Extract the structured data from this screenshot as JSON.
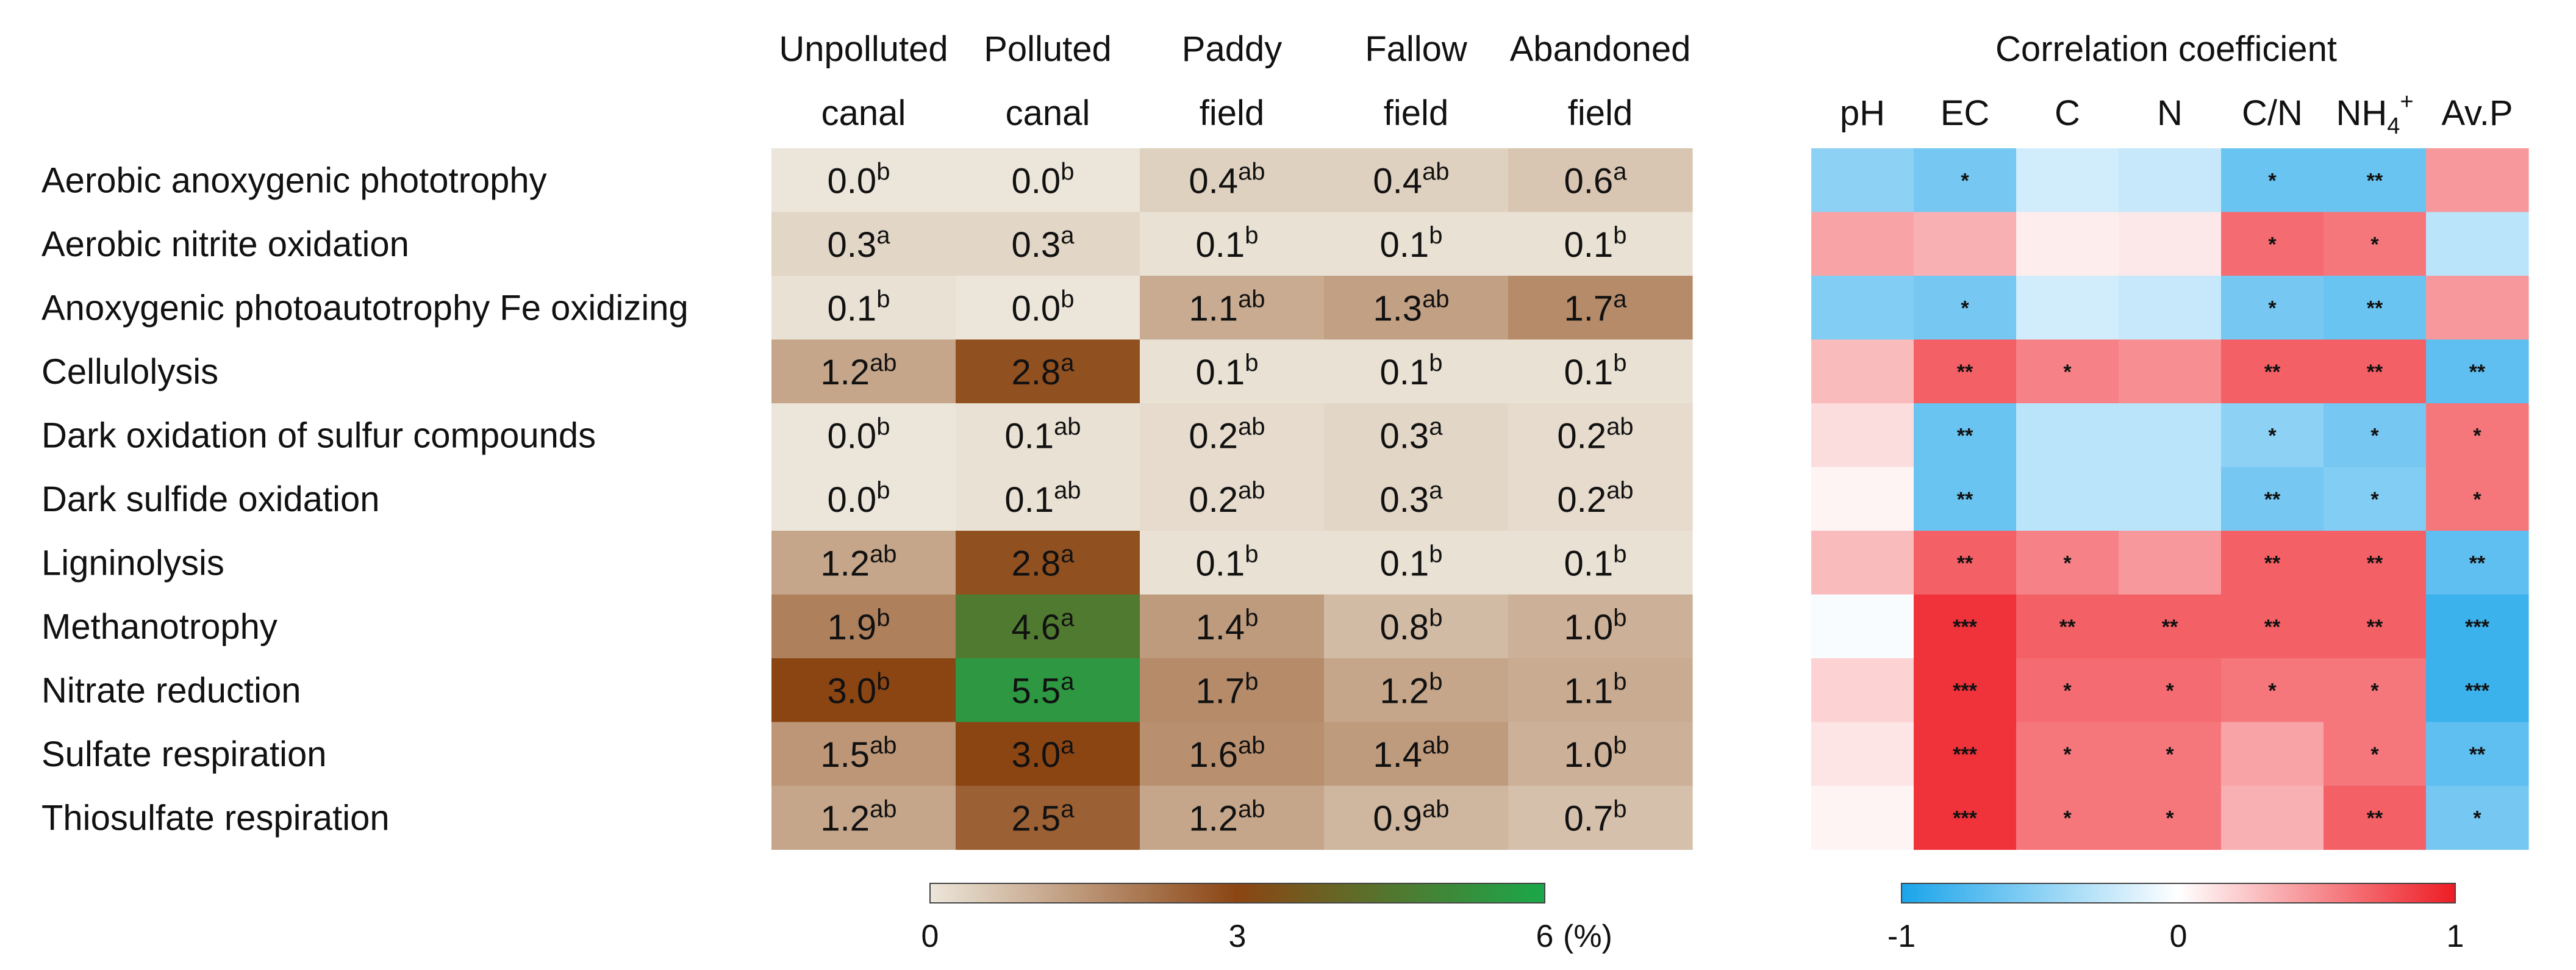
{
  "chart_data": [
    {
      "type": "heatmap",
      "title": "",
      "unit": "(%)",
      "columns": [
        {
          "line1": "Unpolluted",
          "line2": "canal"
        },
        {
          "line1": "Polluted",
          "line2": "canal"
        },
        {
          "line1": "Paddy",
          "line2": "field"
        },
        {
          "line1": "Fallow",
          "line2": "field"
        },
        {
          "line1": "Abandoned",
          "line2": "field"
        }
      ],
      "rows": [
        "Aerobic anoxygenic phototrophy",
        "Aerobic nitrite oxidation",
        "Anoxygenic photoautotrophy Fe oxidizing",
        "Cellulolysis",
        "Dark oxidation of sulfur compounds",
        "Dark sulfide oxidation",
        "Ligninolysis",
        "Methanotrophy",
        "Nitrate reduction",
        "Sulfate respiration",
        "Thiosulfate respiration"
      ],
      "values": [
        [
          0.0,
          0.0,
          0.4,
          0.4,
          0.6
        ],
        [
          0.3,
          0.3,
          0.1,
          0.1,
          0.1
        ],
        [
          0.1,
          0.0,
          1.1,
          1.3,
          1.7
        ],
        [
          1.2,
          2.8,
          0.1,
          0.1,
          0.1
        ],
        [
          0.0,
          0.1,
          0.2,
          0.3,
          0.2
        ],
        [
          0.0,
          0.1,
          0.2,
          0.3,
          0.2
        ],
        [
          1.2,
          2.8,
          0.1,
          0.1,
          0.1
        ],
        [
          1.9,
          4.6,
          1.4,
          0.8,
          1.0
        ],
        [
          3.0,
          5.5,
          1.7,
          1.2,
          1.1
        ],
        [
          1.5,
          3.0,
          1.6,
          1.4,
          1.0
        ],
        [
          1.2,
          2.5,
          1.2,
          0.9,
          0.7
        ]
      ],
      "labels": [
        [
          "0.0",
          "0.0",
          "0.4",
          "0.4",
          "0.6"
        ],
        [
          "0.3",
          "0.3",
          "0.1",
          "0.1",
          "0.1"
        ],
        [
          "0.1",
          "0.0",
          "1.1",
          "1.3",
          "1.7"
        ],
        [
          "1.2",
          "2.8",
          "0.1",
          "0.1",
          "0.1"
        ],
        [
          "0.0",
          "0.1",
          "0.2",
          "0.3",
          "0.2"
        ],
        [
          "0.0",
          "0.1",
          "0.2",
          "0.3",
          "0.2"
        ],
        [
          "1.2",
          "2.8",
          "0.1",
          "0.1",
          "0.1"
        ],
        [
          "1.9",
          "4.6",
          "1.4",
          "0.8",
          "1.0"
        ],
        [
          "3.0",
          "5.5",
          "1.7",
          "1.2",
          "1.1"
        ],
        [
          "1.5",
          "3.0",
          "1.6",
          "1.4",
          "1.0"
        ],
        [
          "1.2",
          "2.5",
          "1.2",
          "0.9",
          "0.7"
        ]
      ],
      "letters": [
        [
          "b",
          "b",
          "ab",
          "ab",
          "a"
        ],
        [
          "a",
          "a",
          "b",
          "b",
          "b"
        ],
        [
          "b",
          "b",
          "ab",
          "ab",
          "a"
        ],
        [
          "ab",
          "a",
          "b",
          "b",
          "b"
        ],
        [
          "b",
          "ab",
          "ab",
          "a",
          "ab"
        ],
        [
          "b",
          "ab",
          "ab",
          "a",
          "ab"
        ],
        [
          "ab",
          "a",
          "b",
          "b",
          "b"
        ],
        [
          "b",
          "a",
          "b",
          "b",
          "b"
        ],
        [
          "b",
          "a",
          "b",
          "b",
          "b"
        ],
        [
          "ab",
          "a",
          "ab",
          "ab",
          "b"
        ],
        [
          "ab",
          "a",
          "ab",
          "ab",
          "b"
        ]
      ],
      "colorbar": {
        "range": [
          0,
          6
        ],
        "ticks": [
          "0",
          "3",
          "6"
        ],
        "stops": [
          "#ece6da",
          "#8b4513",
          "#1aa84a"
        ]
      }
    },
    {
      "type": "heatmap",
      "title": "Correlation coefficient",
      "columns": [
        "pH",
        "EC",
        "C",
        "N",
        "C/N",
        "NH4+",
        "Av.P"
      ],
      "column_display": [
        {
          "main": "pH",
          "sub": "",
          "sup": ""
        },
        {
          "main": "EC",
          "sub": "",
          "sup": ""
        },
        {
          "main": "C",
          "sub": "",
          "sup": ""
        },
        {
          "main": "N",
          "sub": "",
          "sup": ""
        },
        {
          "main": "C/N",
          "sub": "",
          "sup": ""
        },
        {
          "main": "NH",
          "sub": "4",
          "sup": "+"
        },
        {
          "main": "Av.P",
          "sub": "",
          "sup": ""
        }
      ],
      "values": [
        [
          -0.5,
          -0.6,
          -0.2,
          -0.25,
          -0.65,
          -0.65,
          0.45
        ],
        [
          0.4,
          0.35,
          0.08,
          0.1,
          0.65,
          0.6,
          -0.3
        ],
        [
          -0.55,
          -0.6,
          -0.2,
          -0.25,
          -0.6,
          -0.65,
          0.45
        ],
        [
          0.3,
          0.7,
          0.55,
          0.5,
          0.7,
          0.7,
          -0.7
        ],
        [
          0.15,
          -0.65,
          -0.3,
          -0.3,
          -0.5,
          -0.6,
          0.6
        ],
        [
          0.05,
          -0.65,
          -0.3,
          -0.3,
          -0.6,
          -0.55,
          0.6
        ],
        [
          0.3,
          0.7,
          0.55,
          0.45,
          0.7,
          0.7,
          -0.7
        ],
        [
          -0.03,
          0.9,
          0.7,
          0.7,
          0.7,
          0.7,
          -0.85
        ],
        [
          0.2,
          0.9,
          0.65,
          0.65,
          0.6,
          0.6,
          -0.85
        ],
        [
          0.12,
          0.9,
          0.6,
          0.6,
          0.4,
          0.6,
          -0.7
        ],
        [
          0.05,
          0.9,
          0.6,
          0.6,
          0.35,
          0.7,
          -0.6
        ]
      ],
      "significance": [
        [
          "",
          "*",
          "",
          "",
          "*",
          "**",
          ""
        ],
        [
          "",
          "",
          "",
          "",
          "*",
          "*",
          ""
        ],
        [
          "",
          "*",
          "",
          "",
          "*",
          "**",
          ""
        ],
        [
          "",
          "**",
          "*",
          "",
          "**",
          "**",
          "**"
        ],
        [
          "",
          "**",
          "",
          "",
          "*",
          "*",
          "*"
        ],
        [
          "",
          "**",
          "",
          "",
          "**",
          "*",
          "*"
        ],
        [
          "",
          "**",
          "*",
          "",
          "**",
          "**",
          "**"
        ],
        [
          "",
          "***",
          "**",
          "**",
          "**",
          "**",
          "***"
        ],
        [
          "",
          "***",
          "*",
          "*",
          "*",
          "*",
          "***"
        ],
        [
          "",
          "***",
          "*",
          "*",
          "",
          "*",
          "**"
        ],
        [
          "",
          "***",
          "*",
          "*",
          "",
          "**",
          "*"
        ]
      ],
      "colorbar": {
        "range": [
          -1,
          1
        ],
        "ticks": [
          "-1",
          "0",
          "1"
        ],
        "stops": [
          "#1aa4ea",
          "#ffffff",
          "#ee1c24"
        ]
      }
    }
  ]
}
